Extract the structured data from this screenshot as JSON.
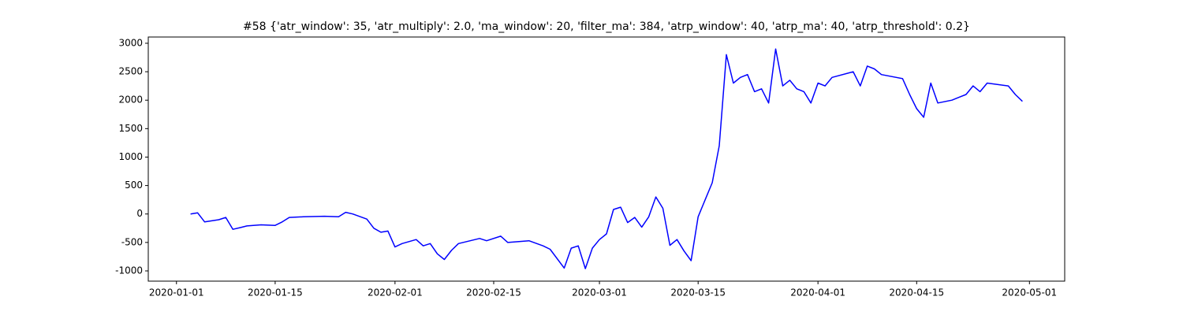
{
  "chart_data": {
    "type": "line",
    "title": "#58 {'atr_window': 35, 'atr_multiply': 2.0, 'ma_window': 20, 'filter_ma': 384, 'atrp_window': 40, 'atrp_ma': 40, 'atrp_threshold': 0.2}",
    "color": "#0000ff",
    "x": [
      "2020-01-03",
      "2020-01-04",
      "2020-01-05",
      "2020-01-07",
      "2020-01-08",
      "2020-01-09",
      "2020-01-10",
      "2020-01-11",
      "2020-01-13",
      "2020-01-15",
      "2020-01-16",
      "2020-01-17",
      "2020-01-19",
      "2020-01-22",
      "2020-01-24",
      "2020-01-25",
      "2020-01-26",
      "2020-01-28",
      "2020-01-29",
      "2020-01-30",
      "2020-01-31",
      "2020-02-01",
      "2020-02-02",
      "2020-02-04",
      "2020-02-05",
      "2020-02-06",
      "2020-02-07",
      "2020-02-08",
      "2020-02-09",
      "2020-02-10",
      "2020-02-13",
      "2020-02-14",
      "2020-02-16",
      "2020-02-17",
      "2020-02-20",
      "2020-02-22",
      "2020-02-23",
      "2020-02-25",
      "2020-02-26",
      "2020-02-27",
      "2020-02-28",
      "2020-02-29",
      "2020-03-01",
      "2020-03-02",
      "2020-03-03",
      "2020-03-04",
      "2020-03-05",
      "2020-03-06",
      "2020-03-07",
      "2020-03-08",
      "2020-03-09",
      "2020-03-10",
      "2020-03-11",
      "2020-03-12",
      "2020-03-13",
      "2020-03-14",
      "2020-03-15",
      "2020-03-16",
      "2020-03-17",
      "2020-03-18",
      "2020-03-19",
      "2020-03-20",
      "2020-03-21",
      "2020-03-22",
      "2020-03-23",
      "2020-03-24",
      "2020-03-25",
      "2020-03-26",
      "2020-03-27",
      "2020-03-28",
      "2020-03-29",
      "2020-03-30",
      "2020-03-31",
      "2020-04-01",
      "2020-04-02",
      "2020-04-03",
      "2020-04-06",
      "2020-04-07",
      "2020-04-08",
      "2020-04-09",
      "2020-04-10",
      "2020-04-13",
      "2020-04-14",
      "2020-04-15",
      "2020-04-16",
      "2020-04-17",
      "2020-04-18",
      "2020-04-20",
      "2020-04-21",
      "2020-04-22",
      "2020-04-23",
      "2020-04-24",
      "2020-04-25",
      "2020-04-28",
      "2020-04-29",
      "2020-04-30"
    ],
    "values": [
      0,
      20,
      -140,
      -100,
      -60,
      -270,
      -240,
      -210,
      -190,
      -200,
      -140,
      -60,
      -50,
      -40,
      -50,
      30,
      0,
      -90,
      -250,
      -320,
      -300,
      -580,
      -520,
      -450,
      -560,
      -520,
      -700,
      -800,
      -640,
      -520,
      -430,
      -470,
      -390,
      -500,
      -470,
      -560,
      -620,
      -950,
      -600,
      -560,
      -960,
      -600,
      -450,
      -350,
      80,
      120,
      -150,
      -60,
      -230,
      -50,
      300,
      100,
      -550,
      -450,
      -650,
      -820,
      -50,
      250,
      550,
      1200,
      2800,
      2300,
      2400,
      2450,
      2150,
      2200,
      1950,
      2900,
      2250,
      2350,
      2200,
      2150,
      1950,
      2300,
      2250,
      2400,
      2500,
      2250,
      2600,
      2550,
      2450,
      2380,
      2100,
      1850,
      1700,
      2300,
      1950,
      2000,
      2050,
      2100,
      2250,
      2150,
      2300,
      2250,
      2100,
      1980
    ],
    "xlim": [
      "2019-12-28",
      "2020-05-06"
    ],
    "xticks": [
      "2020-01-01",
      "2020-01-15",
      "2020-02-01",
      "2020-02-15",
      "2020-03-01",
      "2020-03-15",
      "2020-04-01",
      "2020-04-15",
      "2020-05-01"
    ],
    "ylim": [
      -1180,
      3110
    ],
    "yticks": [
      -1000,
      -500,
      0,
      500,
      1000,
      1500,
      2000,
      2500,
      3000
    ]
  }
}
